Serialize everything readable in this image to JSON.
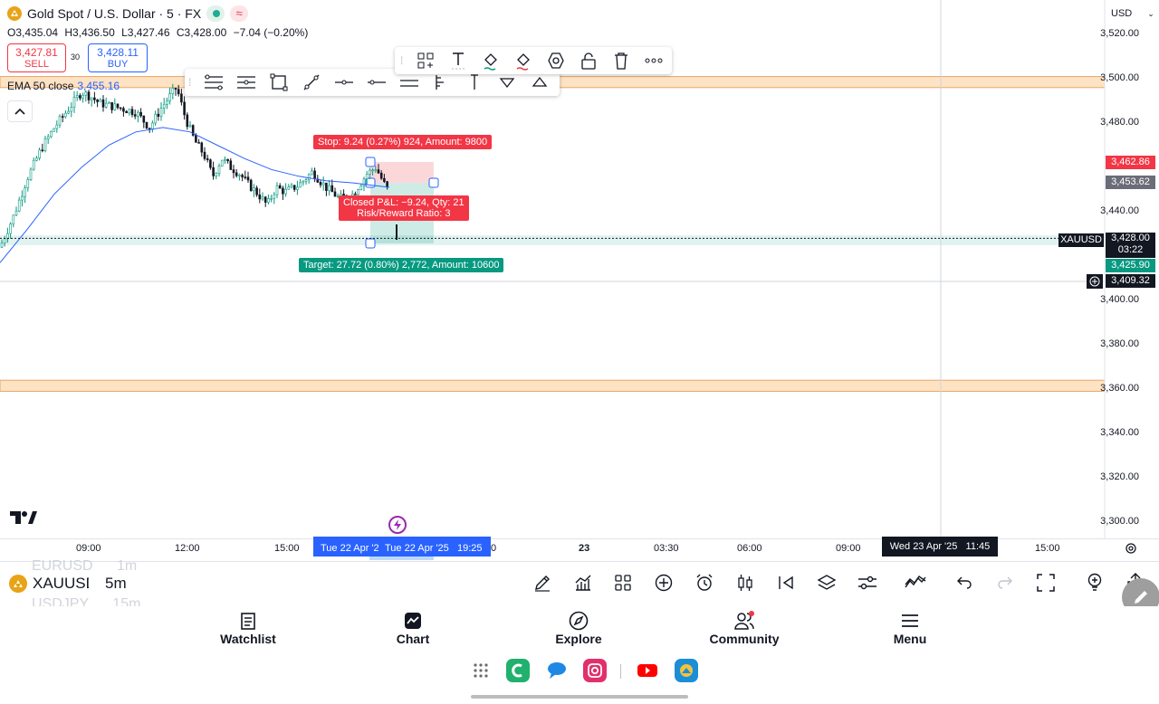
{
  "header": {
    "symbol_title": "Gold Spot / U.S. Dollar · 5 · FX",
    "ohlc": {
      "o": "O3,435.04",
      "h": "H3,436.50",
      "l": "L3,427.46",
      "c": "C3,428.00",
      "chg": "−7.04 (−0.20%)"
    },
    "sell_price": "3,427.81",
    "sell_label": "SELL",
    "spread": "30",
    "buy_price": "3,428.11",
    "buy_label": "BUY",
    "currency": "USD"
  },
  "indicator": {
    "label": "EMA 50 close",
    "value": "3,455.16",
    "color": "#2962ff"
  },
  "price_axis": {
    "ticks": [
      "3,520.00",
      "3,500.00",
      "3,480.00",
      "3,460.00",
      "3,440.00",
      "3,420.00",
      "3,400.00",
      "3,380.00",
      "3,360.00",
      "3,340.00",
      "3,320.00",
      "3,300.00"
    ],
    "tags": {
      "stop_price": "3,462.86",
      "ema_price": "3,453.62",
      "symbol": "XAUUSD",
      "last_price": "3,428.00",
      "countdown": "03:22",
      "target_price": "3,425.90",
      "crosshair_price": "3,409.32"
    }
  },
  "position_tool": {
    "stop_text": "Stop: 9.24 (0.27%) 924, Amount: 9800",
    "closed_text_1": "Closed P&L: −9.24, Qty: 21",
    "closed_text_2": "Risk/Reward Ratio: 3",
    "target_text": "Target: 27.72 (0.80%) 2,772, Amount: 10600"
  },
  "time_axis": {
    "labels": [
      "09:00",
      "12:00",
      "15:00",
      "23",
      "03:30",
      "06:00",
      "09:00",
      "15:00"
    ],
    "range_left": "Tue 22 Apr '2",
    "range_right": "Tue 22 Apr '25   19:25",
    "range_cut": "0",
    "crosshair_time": "Wed 23 Apr '25   11:45"
  },
  "chart_data": {
    "type": "candlestick",
    "ylim": [
      3290,
      3530
    ],
    "ema_period": 50,
    "support_resistance_zones": [
      [
        3496,
        3501
      ],
      [
        3359,
        3364
      ]
    ],
    "last_price": 3428.0,
    "colors": {
      "up": "#089981",
      "down": "#131722",
      "ema": "#2962ff",
      "zone": "#fde2c4",
      "stop": "#f23645",
      "target": "#089981"
    }
  },
  "watchlist_peek": {
    "above_symbol": "EURUSD",
    "above_interval": "1m",
    "symbol": "XAUUSD",
    "interval": "5m",
    "below_symbol": "USDJPY",
    "below_interval": "15m"
  },
  "bottom_toolbar": {
    "icons": [
      "pencil-icon",
      "indicators-icon",
      "templates-icon",
      "add-icon",
      "alert-icon",
      "chart-type-icon",
      "replay-icon",
      "layers-icon",
      "settings-icon",
      "compare-icon",
      "undo-icon",
      "redo-icon",
      "fullscreen-icon",
      "lightbulb-icon",
      "share-icon"
    ]
  },
  "nav": {
    "watchlist": "Watchlist",
    "chart": "Chart",
    "explore": "Explore",
    "community": "Community",
    "menu": "Menu"
  },
  "logo_text": "TV"
}
